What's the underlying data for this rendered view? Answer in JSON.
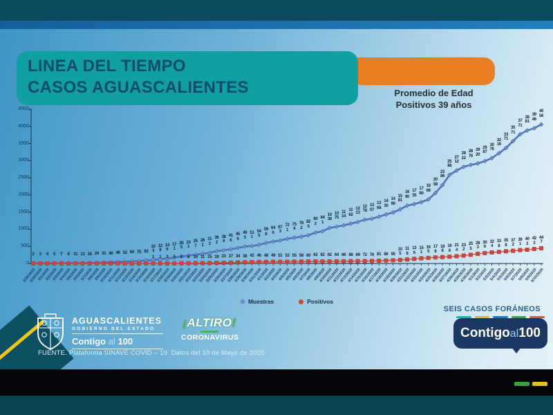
{
  "header": {
    "title_line1": "LINEA DEL TIEMPO",
    "title_line2": "CASOS AGUASCALIENTES",
    "avg_age_line1": "Promedio de Edad",
    "avg_age_line2": "Positivos 39 años"
  },
  "chart_data": {
    "type": "line",
    "title": "Linea del tiempo casos Aguascalientes",
    "xlabel": "",
    "ylabel": "",
    "ylim": [
      0,
      4500
    ],
    "yticks": [
      0,
      500,
      1000,
      1500,
      2000,
      2500,
      3000,
      3500,
      4000,
      4500
    ],
    "grid": false,
    "legend_position": "bottom",
    "x": [
      "2/28/2020",
      "2/29/2020",
      "3/1/2020",
      "3/2/2020",
      "3/3/2020",
      "3/4/2020",
      "3/5/2020",
      "3/6/2020",
      "3/7/2020",
      "3/8/2020",
      "3/9/2020",
      "3/10/2020",
      "3/11/2020",
      "3/12/2020",
      "3/13/2020",
      "3/14/2020",
      "3/15/2020",
      "3/16/2020",
      "3/17/2020",
      "3/18/2020",
      "3/19/2020",
      "3/20/2020",
      "3/21/2020",
      "3/22/2020",
      "3/23/2020",
      "3/24/2020",
      "3/25/2020",
      "3/26/2020",
      "3/27/2020",
      "3/28/2020",
      "3/29/2020",
      "3/30/2020",
      "3/31/2020",
      "4/1/2020",
      "4/2/2020",
      "4/3/2020",
      "4/4/2020",
      "4/5/2020",
      "4/6/2020",
      "4/7/2020",
      "4/8/2020",
      "4/9/2020",
      "4/10/2020",
      "4/11/2020",
      "4/12/2020",
      "4/13/2020",
      "4/14/2020",
      "4/15/2020",
      "4/16/2020",
      "4/17/2020",
      "4/18/2020",
      "4/19/2020",
      "4/20/2020",
      "4/21/2020",
      "4/22/2020",
      "4/23/2020",
      "4/24/2020",
      "4/25/2020",
      "4/26/2020",
      "4/27/2020",
      "4/28/2020",
      "4/29/2020",
      "4/30/2020",
      "5/1/2020",
      "5/2/2020",
      "5/3/2020",
      "5/4/2020",
      "5/5/2020",
      "5/6/2020",
      "5/7/2020",
      "5/8/2020",
      "5/9/2020",
      "5/10/2020"
    ],
    "series": [
      {
        "name": "Muestras",
        "marker": "diamond",
        "color": "#4a6cb8",
        "values": [
          2,
          3,
          4,
          5,
          7,
          8,
          11,
          13,
          16,
          24,
          31,
          40,
          46,
          52,
          64,
          75,
          92,
          103,
          128,
          146,
          171,
          205,
          231,
          257,
          281,
          313,
          362,
          386,
          416,
          456,
          495,
          511,
          545,
          598,
          640,
          673,
          721,
          754,
          782,
          825,
          902,
          941,
          1038,
          1075,
          1114,
          1162,
          1213,
          1278,
          1307,
          1368,
          1430,
          1490,
          1581,
          1690,
          1735,
          1790,
          1869,
          2058,
          2286,
          2586,
          2712,
          2822,
          2876,
          2920,
          2987,
          3076,
          3216,
          3371,
          3571,
          3771,
          3881,
          3946,
          4056
        ]
      },
      {
        "name": "Positivos",
        "marker": "square",
        "color": "#cf4137",
        "values": [
          0,
          0,
          0,
          0,
          0,
          0,
          0,
          0,
          0,
          0,
          0,
          0,
          0,
          0,
          0,
          0,
          0,
          1,
          1,
          3,
          5,
          6,
          8,
          10,
          11,
          15,
          19,
          23,
          27,
          34,
          38,
          42,
          46,
          48,
          49,
          51,
          53,
          55,
          58,
          60,
          62,
          62,
          62,
          64,
          66,
          68,
          69,
          72,
          76,
          81,
          86,
          95,
          105,
          118,
          136,
          151,
          165,
          178,
          188,
          198,
          214,
          232,
          255,
          283,
          306,
          324,
          338,
          358,
          372,
          391,
          403,
          423,
          447
        ]
      }
    ]
  },
  "notes": {
    "foreign_cases": "SEIS CASOS FORÁNEOS"
  },
  "footer": {
    "state_logo": {
      "name": "AGUASCALIENTES",
      "subtitle": "GOBIERNO DEL ESTADO",
      "slogan_1": "Contigo",
      "slogan_2": "al",
      "slogan_3": "100"
    },
    "campaign": {
      "line1": "ALTIRO",
      "line2": "CORONAVIRUS"
    },
    "source": "FUENTE. Plataforma SINAVE COVID – 19. Datos del 10 de Mayo de 2020",
    "contigo_badge": {
      "part1": "Contigo",
      "part2": "al",
      "part3": "100"
    }
  },
  "colors": {
    "banner_teal": "#10a0a2",
    "header_orange": "#e87d22",
    "muestras_blue": "#4a6cb8",
    "positivos_red": "#cf4137",
    "frame_teal": "#0c4b5e"
  }
}
